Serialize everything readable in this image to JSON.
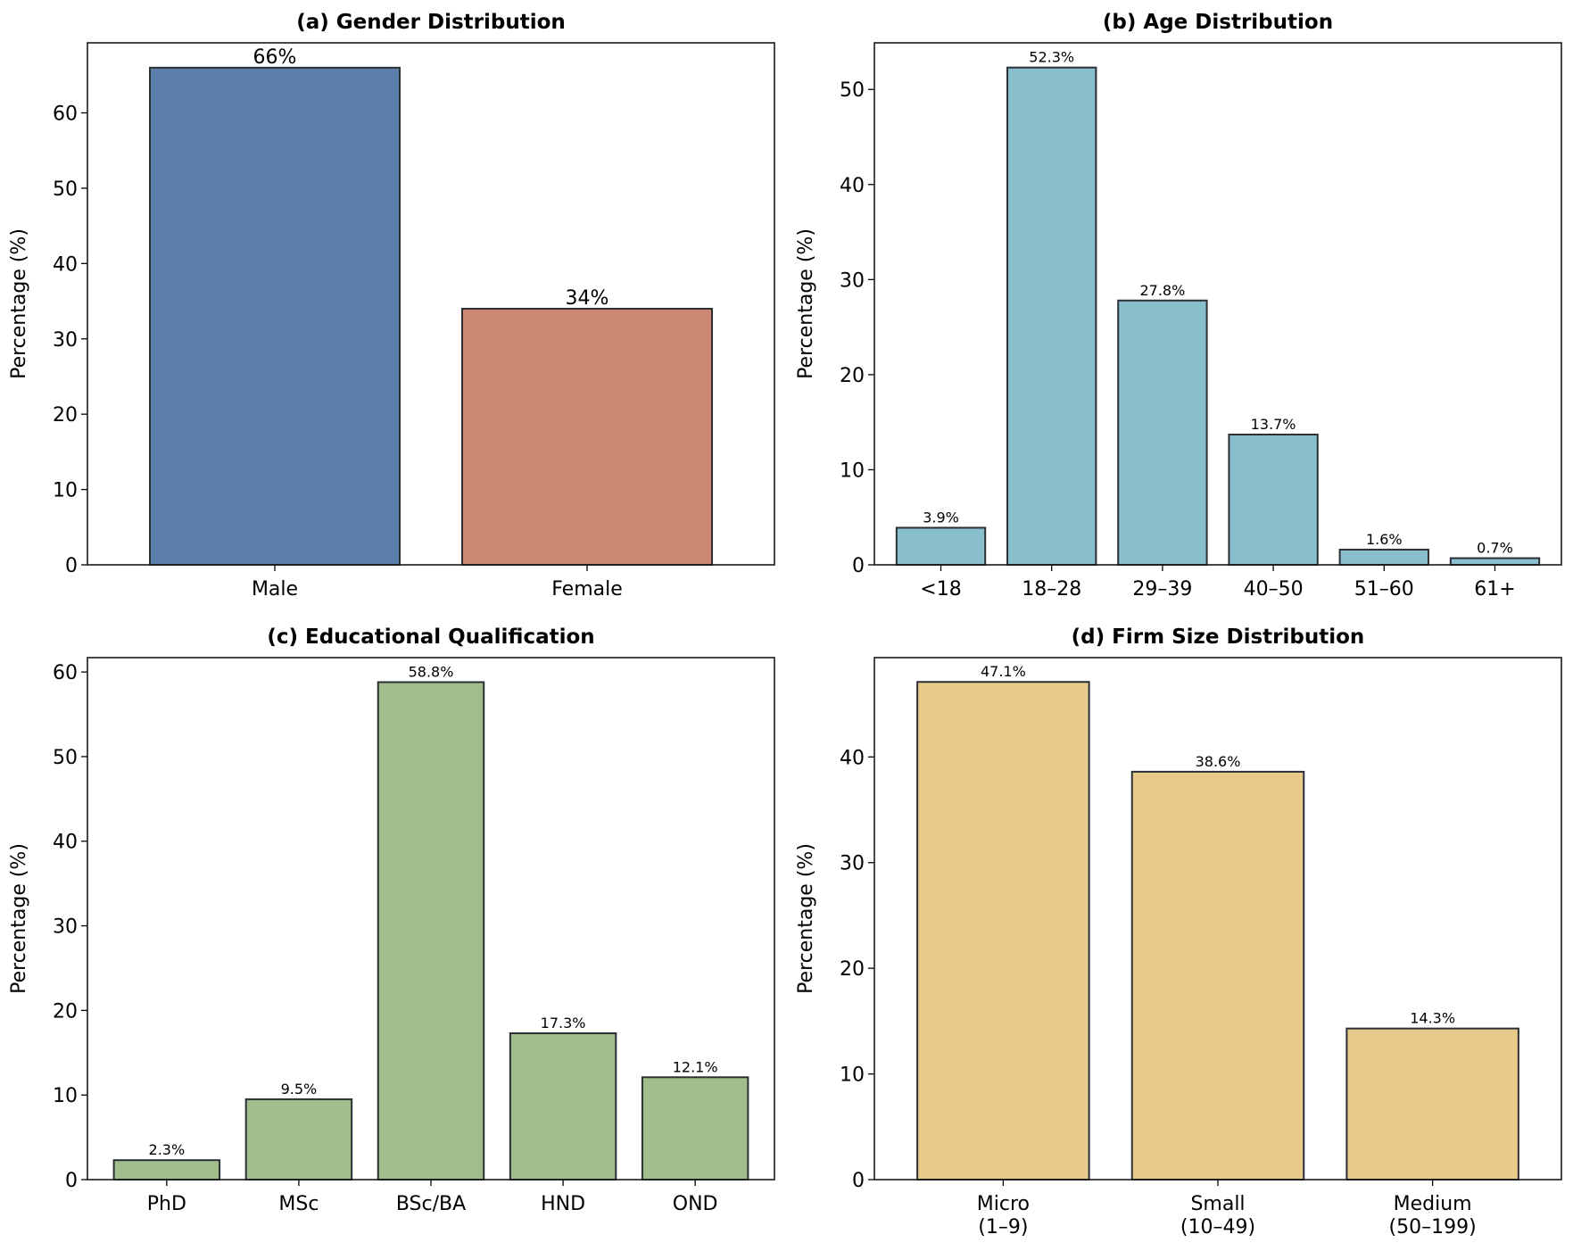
{
  "chart_data": [
    {
      "type": "bar",
      "title": "(a) Gender Distribution",
      "ylabel": "Percentage (%)",
      "xlabel": "",
      "categories": [
        "Male",
        "Female"
      ],
      "values": [
        66,
        34
      ],
      "data_labels": [
        "66%",
        "34%"
      ],
      "ylim": [
        0,
        69.3
      ],
      "yticks": [
        0,
        10,
        20,
        30,
        40,
        50,
        60
      ],
      "colors": [
        "#5b7faa",
        "#cc8870"
      ],
      "grid": false
    },
    {
      "type": "bar",
      "title": "(b) Age Distribution",
      "ylabel": "Percentage (%)",
      "xlabel": "",
      "categories": [
        "<18",
        "18–28",
        "29–39",
        "40–50",
        "51–60",
        "61+"
      ],
      "values": [
        3.9,
        52.3,
        27.8,
        13.7,
        1.6,
        0.7
      ],
      "data_labels": [
        "3.9%",
        "52.3%",
        "27.8%",
        "13.7%",
        "1.6%",
        "0.7%"
      ],
      "ylim": [
        0,
        54.9
      ],
      "yticks": [
        0,
        10,
        20,
        30,
        40,
        50
      ],
      "colors": [
        "#89bfcd"
      ],
      "grid": false
    },
    {
      "type": "bar",
      "title": "(c) Educational Qualification",
      "ylabel": "Percentage (%)",
      "xlabel": "",
      "categories": [
        "PhD",
        "MSc",
        "BSc/BA",
        "HND",
        "OND"
      ],
      "values": [
        2.3,
        9.5,
        58.8,
        17.3,
        12.1
      ],
      "data_labels": [
        "2.3%",
        "9.5%",
        "58.8%",
        "17.3%",
        "12.1%"
      ],
      "ylim": [
        0,
        61.7
      ],
      "yticks": [
        0,
        10,
        20,
        30,
        40,
        50,
        60
      ],
      "colors": [
        "#a1bd8b"
      ],
      "grid": false
    },
    {
      "type": "bar",
      "title": "(d) Firm Size Distribution",
      "ylabel": "Percentage (%)",
      "xlabel": "",
      "categories": [
        [
          "Micro",
          "(1–9)"
        ],
        [
          "Small",
          "(10–49)"
        ],
        [
          "Medium",
          "(50–199)"
        ]
      ],
      "values": [
        47.1,
        38.6,
        14.3
      ],
      "data_labels": [
        "47.1%",
        "38.6%",
        "14.3%"
      ],
      "ylim": [
        0,
        49.4
      ],
      "yticks": [
        0,
        10,
        20,
        30,
        40
      ],
      "colors": [
        "#e8cb8a"
      ],
      "grid": false
    }
  ]
}
